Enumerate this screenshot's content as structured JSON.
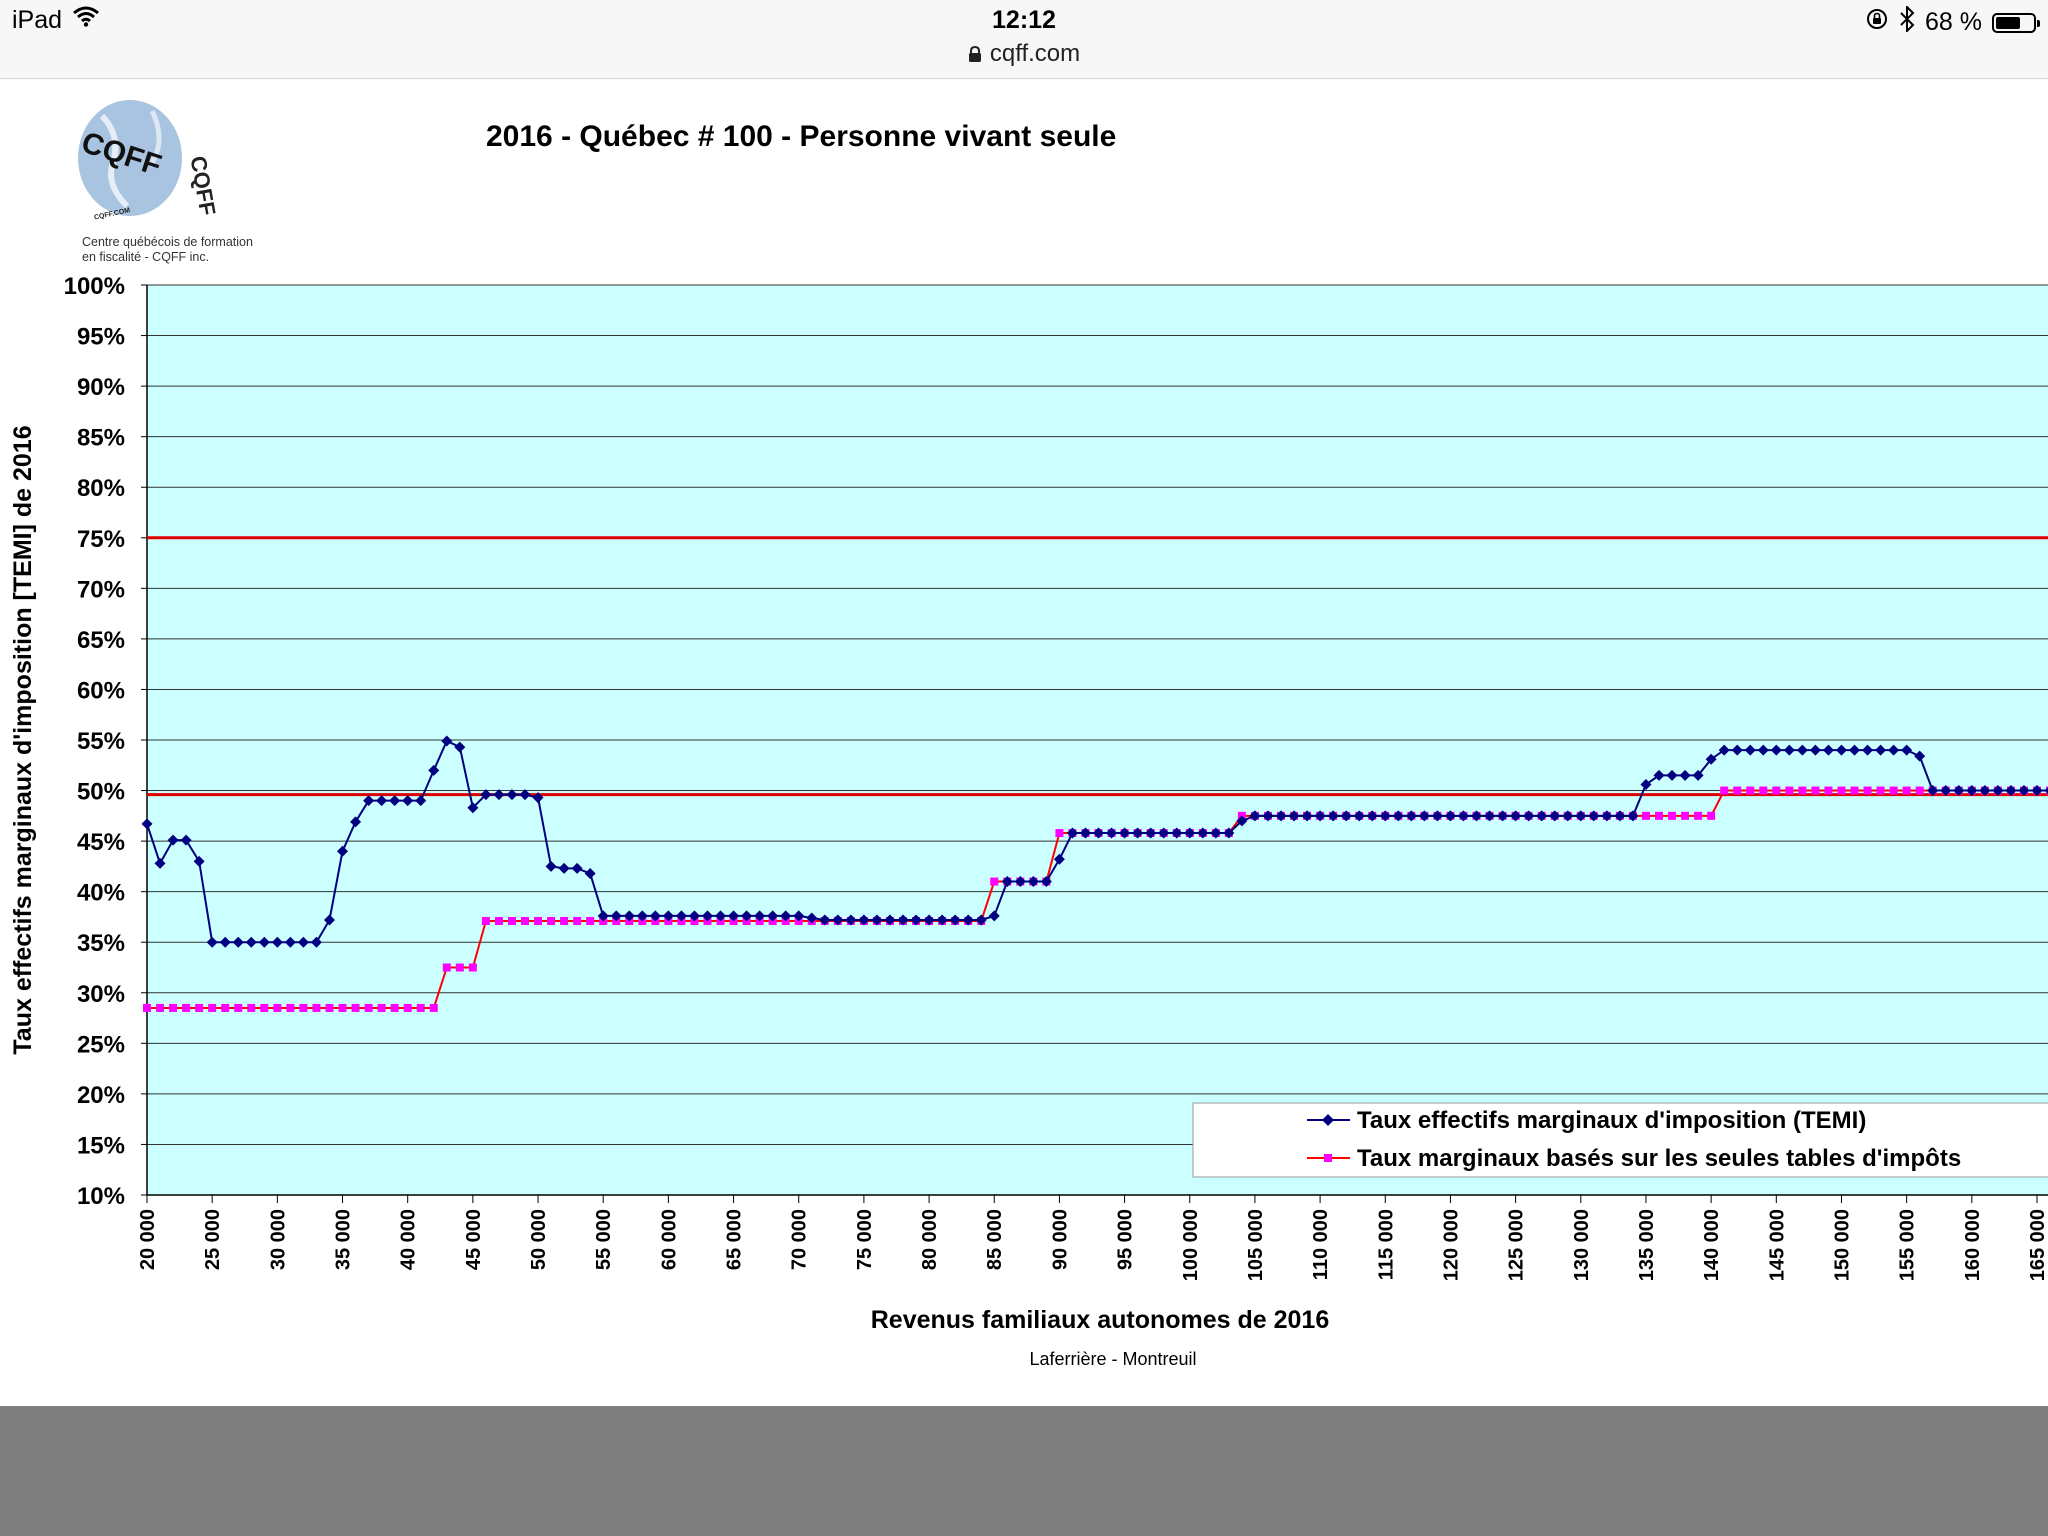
{
  "status_bar": {
    "device": "iPad",
    "time": "12:12",
    "url": "cqff.com",
    "battery_text": "68 %",
    "battery_level": 0.68,
    "icons": [
      "wifi-icon",
      "lock-icon",
      "rotation-lock-icon",
      "bluetooth-icon",
      "battery-icon"
    ]
  },
  "logo": {
    "text": "CQFF",
    "small_text": "CQFF.COM",
    "caption_line1": "Centre québécois de formation",
    "caption_line2": "en fiscalité - CQFF inc."
  },
  "colors": {
    "plot_bg": "#ccffff",
    "temi": "#000080",
    "tables_marker": "#ff00ff",
    "tables_line": "#ff0000",
    "ref_line": "#e00000"
  },
  "chart_data": {
    "type": "line",
    "title": "2016 - Québec # 100 - Personne vivant seule",
    "xlabel": "Revenus familiaux autonomes de 2016",
    "ylabel": "Taux effectifs marginaux d'imposition [TEMI] de 2016",
    "credit": "Laferrière - Montreuil",
    "xlim": [
      20000,
      165000
    ],
    "ylim": [
      10,
      100
    ],
    "x_ticks": [
      "20 000",
      "25 000",
      "30 000",
      "35 000",
      "40 000",
      "45 000",
      "50 000",
      "55 000",
      "60 000",
      "65 000",
      "70 000",
      "75 000",
      "80 000",
      "85 000",
      "90 000",
      "95 000",
      "100 000",
      "105 000",
      "110 000",
      "115 000",
      "120 000",
      "125 000",
      "130 000",
      "135 000",
      "140 000",
      "145 000",
      "150 000",
      "155 000",
      "160 000",
      "165 000"
    ],
    "y_ticks": [
      "10%",
      "15%",
      "20%",
      "25%",
      "30%",
      "35%",
      "40%",
      "45%",
      "50%",
      "55%",
      "60%",
      "65%",
      "70%",
      "75%",
      "80%",
      "85%",
      "90%",
      "95%",
      "100%"
    ],
    "reference_lines": [
      75,
      49.6
    ],
    "legend_position": "bottom-right",
    "x_step": 1000,
    "series": [
      {
        "name": "Taux effectifs marginaux d'imposition (TEMI)",
        "marker": "diamond",
        "x_start": 20000,
        "values": [
          46.7,
          42.8,
          45.1,
          45.1,
          43,
          35,
          35,
          35,
          35,
          35,
          35,
          35,
          35,
          35,
          37.2,
          44,
          46.9,
          49,
          49,
          49,
          49,
          49,
          52,
          54.9,
          54.3,
          48.3,
          49.6,
          49.6,
          49.6,
          49.6,
          49.3,
          42.5,
          42.3,
          42.3,
          41.8,
          37.6,
          37.6,
          37.6,
          37.6,
          37.6,
          37.6,
          37.6,
          37.6,
          37.6,
          37.6,
          37.6,
          37.6,
          37.6,
          37.6,
          37.6,
          37.6,
          37.4,
          37.2,
          37.2,
          37.2,
          37.2,
          37.2,
          37.2,
          37.2,
          37.2,
          37.2,
          37.2,
          37.2,
          37.2,
          37.2,
          37.6,
          41,
          41,
          41,
          41,
          43.2,
          45.8,
          45.8,
          45.8,
          45.8,
          45.8,
          45.8,
          45.8,
          45.8,
          45.8,
          45.8,
          45.8,
          45.8,
          45.8,
          47,
          47.5,
          47.5,
          47.5,
          47.5,
          47.5,
          47.5,
          47.5,
          47.5,
          47.5,
          47.5,
          47.5,
          47.5,
          47.5,
          47.5,
          47.5,
          47.5,
          47.5,
          47.5,
          47.5,
          47.5,
          47.5,
          47.5,
          47.5,
          47.5,
          47.5,
          47.5,
          47.5,
          47.5,
          47.5,
          47.5,
          50.6,
          51.5,
          51.5,
          51.5,
          51.5,
          53.1,
          54,
          54,
          54,
          54,
          54,
          54,
          54,
          54,
          54,
          54,
          54,
          54,
          54,
          54,
          54,
          53.4,
          50,
          50,
          50,
          50,
          50,
          50,
          50,
          50,
          50,
          50
        ]
      },
      {
        "name": "Taux marginaux basés sur les seules tables d'impôts",
        "marker": "square",
        "x_start": 20000,
        "values": [
          28.5,
          28.5,
          28.5,
          28.5,
          28.5,
          28.5,
          28.5,
          28.5,
          28.5,
          28.5,
          28.5,
          28.5,
          28.5,
          28.5,
          28.5,
          28.5,
          28.5,
          28.5,
          28.5,
          28.5,
          28.5,
          28.5,
          28.5,
          32.5,
          32.5,
          32.5,
          37.1,
          37.1,
          37.1,
          37.1,
          37.1,
          37.1,
          37.1,
          37.1,
          37.1,
          37.1,
          37.1,
          37.1,
          37.1,
          37.1,
          37.1,
          37.1,
          37.1,
          37.1,
          37.1,
          37.1,
          37.1,
          37.1,
          37.1,
          37.1,
          37.1,
          37.1,
          37.1,
          37.1,
          37.1,
          37.1,
          37.1,
          37.1,
          37.1,
          37.1,
          37.1,
          37.1,
          37.1,
          37.1,
          37.1,
          41,
          41,
          41,
          41,
          41,
          45.8,
          45.8,
          45.8,
          45.8,
          45.8,
          45.8,
          45.8,
          45.8,
          45.8,
          45.8,
          45.8,
          45.8,
          45.8,
          45.8,
          47.5,
          47.5,
          47.5,
          47.5,
          47.5,
          47.5,
          47.5,
          47.5,
          47.5,
          47.5,
          47.5,
          47.5,
          47.5,
          47.5,
          47.5,
          47.5,
          47.5,
          47.5,
          47.5,
          47.5,
          47.5,
          47.5,
          47.5,
          47.5,
          47.5,
          47.5,
          47.5,
          47.5,
          47.5,
          47.5,
          47.5,
          47.5,
          47.5,
          47.5,
          47.5,
          47.5,
          47.5,
          50,
          50,
          50,
          50,
          50,
          50,
          50,
          50,
          50,
          50,
          50,
          50,
          50,
          50,
          50,
          50,
          50,
          50,
          50,
          50,
          50,
          50,
          50,
          50,
          50,
          50,
          50
        ]
      }
    ]
  }
}
